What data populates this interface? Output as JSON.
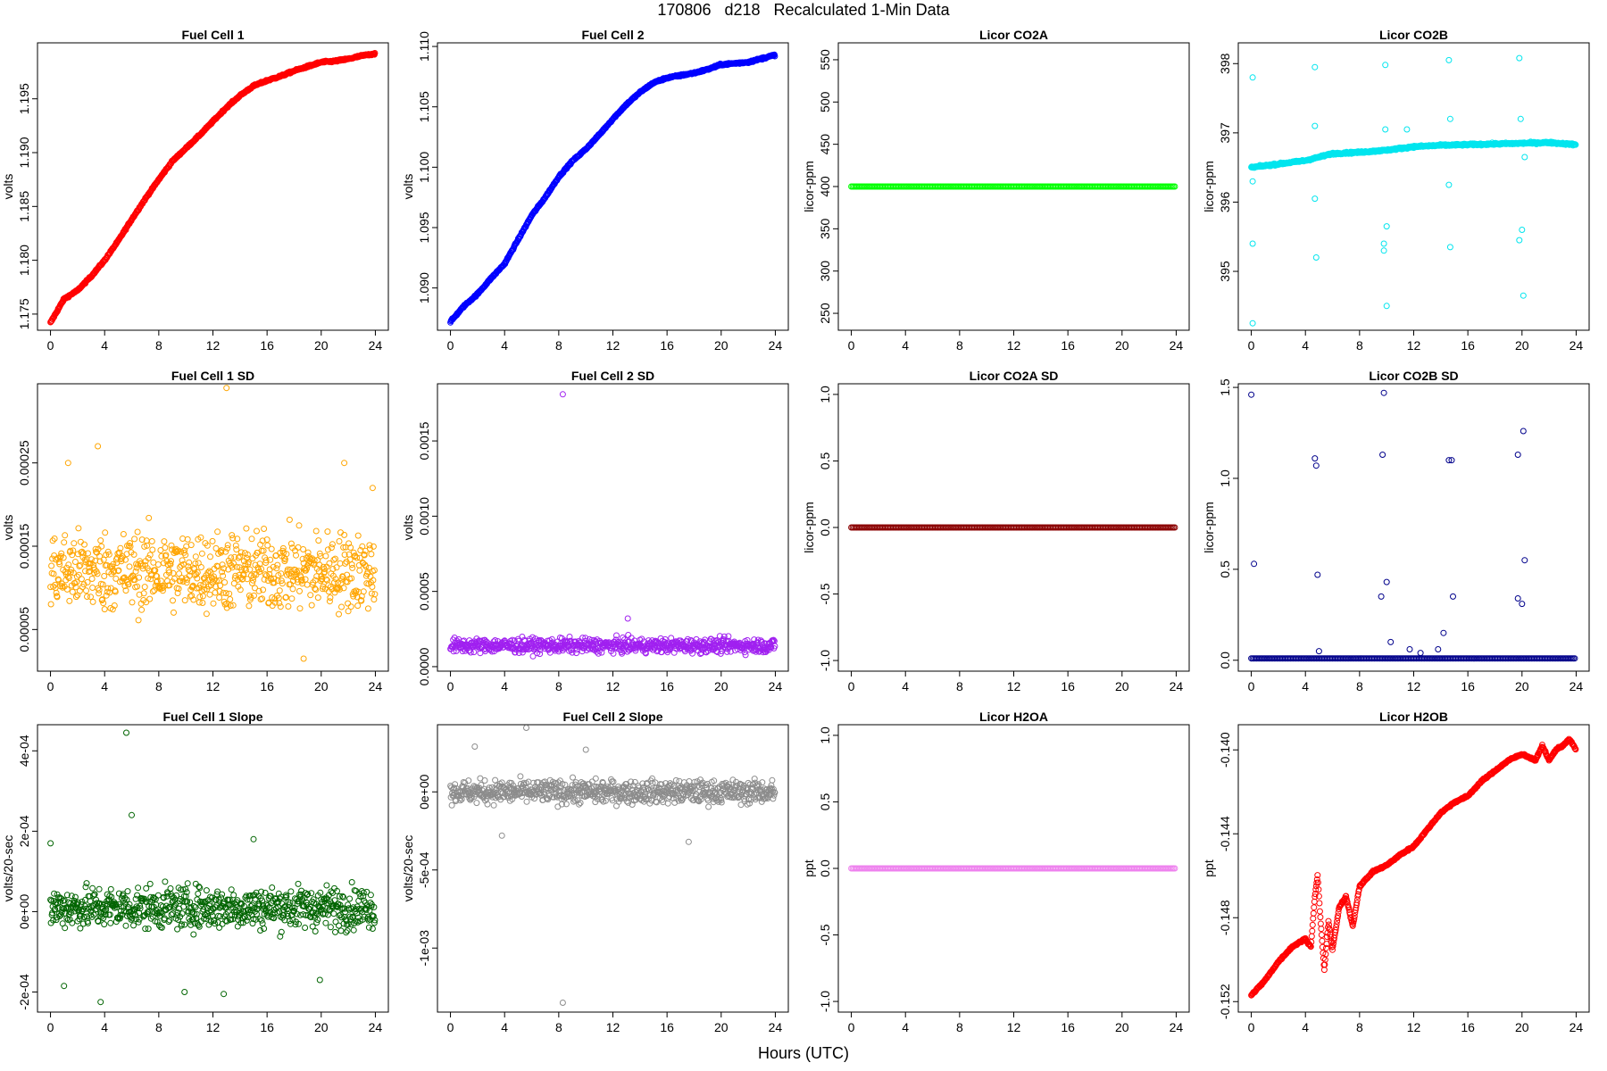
{
  "figure": {
    "title": "170806   d218   Recalculated 1-Min Data",
    "xlabel": "Hours (UTC)"
  },
  "chart_data": [
    {
      "type": "scatter",
      "title": "Fuel Cell 1",
      "ylabel": "volts",
      "color": "#ff0000",
      "xlim": [
        -0.96,
        24.96
      ],
      "ylim": [
        1.1735,
        1.2002
      ],
      "xticks": [
        0,
        4,
        8,
        12,
        16,
        20,
        24
      ],
      "yticks": [
        1.175,
        1.18,
        1.185,
        1.19,
        1.195
      ],
      "ytick_labels": [
        "1.175",
        "1.180",
        "1.185",
        "1.190",
        "1.195"
      ],
      "pattern": "curve",
      "curve": [
        [
          0,
          1.1742
        ],
        [
          1,
          1.1764
        ],
        [
          2,
          1.1772
        ],
        [
          3,
          1.1785
        ],
        [
          4,
          1.18
        ],
        [
          5,
          1.1818
        ],
        [
          6,
          1.1838
        ],
        [
          7,
          1.1857
        ],
        [
          8,
          1.1875
        ],
        [
          9,
          1.1892
        ],
        [
          10,
          1.1904
        ],
        [
          11,
          1.1916
        ],
        [
          12,
          1.1929
        ],
        [
          13,
          1.1942
        ],
        [
          14,
          1.1953
        ],
        [
          15,
          1.1962
        ],
        [
          16,
          1.1967
        ],
        [
          17,
          1.1971
        ],
        [
          18,
          1.1976
        ],
        [
          19,
          1.198
        ],
        [
          20,
          1.1984
        ],
        [
          21,
          1.1985
        ],
        [
          22,
          1.1987
        ],
        [
          23,
          1.199
        ],
        [
          24,
          1.1992
        ]
      ]
    },
    {
      "type": "scatter",
      "title": "Fuel Cell 2",
      "ylabel": "volts",
      "color": "#0000ff",
      "xlim": [
        -0.96,
        24.96
      ],
      "ylim": [
        1.0865,
        1.1103
      ],
      "xticks": [
        0,
        4,
        8,
        12,
        16,
        20,
        24
      ],
      "yticks": [
        1.09,
        1.095,
        1.1,
        1.105,
        1.11
      ],
      "ytick_labels": [
        "1.090",
        "1.095",
        "1.100",
        "1.105",
        "1.110"
      ],
      "pattern": "curve",
      "curve": [
        [
          0,
          1.0872
        ],
        [
          1,
          1.0885
        ],
        [
          2,
          1.0895
        ],
        [
          3,
          1.0908
        ],
        [
          4,
          1.092
        ],
        [
          5,
          1.094
        ],
        [
          6,
          1.096
        ],
        [
          7,
          1.0975
        ],
        [
          8,
          1.0992
        ],
        [
          9,
          1.1005
        ],
        [
          10,
          1.1015
        ],
        [
          11,
          1.1027
        ],
        [
          12,
          1.104
        ],
        [
          13,
          1.1052
        ],
        [
          14,
          1.1062
        ],
        [
          15,
          1.107
        ],
        [
          16,
          1.1074
        ],
        [
          17,
          1.1076
        ],
        [
          18,
          1.1078
        ],
        [
          19,
          1.1081
        ],
        [
          20,
          1.1085
        ],
        [
          21,
          1.1086
        ],
        [
          22,
          1.1087
        ],
        [
          23,
          1.109
        ],
        [
          24,
          1.1093
        ]
      ]
    },
    {
      "type": "scatter",
      "title": "Licor CO2A",
      "ylabel": "licor-ppm",
      "color": "#00ff00",
      "xlim": [
        -0.96,
        24.96
      ],
      "ylim": [
        230,
        570
      ],
      "xticks": [
        0,
        4,
        8,
        12,
        16,
        20,
        24
      ],
      "yticks": [
        250,
        300,
        350,
        400,
        450,
        500,
        550
      ],
      "ytick_labels": [
        "250",
        "300",
        "350",
        "400",
        "450",
        "500",
        "550"
      ],
      "pattern": "constant",
      "value": 400
    },
    {
      "type": "scatter",
      "title": "Licor CO2B",
      "ylabel": "licor-ppm",
      "color": "#00e5ee",
      "xlim": [
        -0.96,
        24.96
      ],
      "ylim": [
        394.15,
        398.3
      ],
      "xticks": [
        0,
        4,
        8,
        12,
        16,
        20,
        24
      ],
      "yticks": [
        395,
        396,
        397,
        398
      ],
      "ytick_labels": [
        "395",
        "396",
        "397",
        "398"
      ],
      "pattern": "curve",
      "curve": [
        [
          0,
          396.5
        ],
        [
          2,
          396.55
        ],
        [
          4,
          396.6
        ],
        [
          5,
          396.65
        ],
        [
          6,
          396.7
        ],
        [
          8,
          396.72
        ],
        [
          10,
          396.75
        ],
        [
          12,
          396.8
        ],
        [
          14,
          396.82
        ],
        [
          16,
          396.83
        ],
        [
          18,
          396.84
        ],
        [
          20,
          396.85
        ],
        [
          22,
          396.86
        ],
        [
          24,
          396.83
        ]
      ],
      "outliers": [
        [
          0.1,
          397.8
        ],
        [
          0.1,
          395.4
        ],
        [
          0.1,
          394.25
        ],
        [
          0.1,
          396.3
        ],
        [
          4.7,
          397.95
        ],
        [
          4.7,
          397.1
        ],
        [
          4.8,
          395.2
        ],
        [
          4.7,
          396.05
        ],
        [
          9.9,
          397.98
        ],
        [
          9.8,
          395.4
        ],
        [
          9.8,
          395.3
        ],
        [
          10.0,
          395.65
        ],
        [
          10.0,
          394.5
        ],
        [
          9.9,
          397.05
        ],
        [
          11.5,
          397.05
        ],
        [
          14.6,
          398.05
        ],
        [
          14.7,
          397.2
        ],
        [
          14.7,
          395.35
        ],
        [
          14.6,
          396.25
        ],
        [
          19.8,
          398.08
        ],
        [
          19.8,
          395.45
        ],
        [
          20.0,
          395.6
        ],
        [
          20.1,
          394.65
        ],
        [
          19.9,
          397.2
        ],
        [
          20.2,
          396.65
        ]
      ]
    },
    {
      "type": "scatter",
      "title": "Fuel Cell 1 SD",
      "ylabel": "volts",
      "color": "#ffa500",
      "xlim": [
        -0.96,
        24.96
      ],
      "ylim": [
        0.0,
        0.000345
      ],
      "xticks": [
        0,
        4,
        8,
        12,
        16,
        20,
        24
      ],
      "yticks": [
        5e-05,
        0.00015,
        0.00025
      ],
      "ytick_labels": [
        "0.00005",
        "0.00015",
        "0.00025"
      ],
      "pattern": "noise",
      "mean": 0.00012,
      "spread": 4.5e-05,
      "outliers": [
        [
          13.0,
          0.00034
        ],
        [
          3.5,
          0.00027
        ],
        [
          1.3,
          0.00025
        ],
        [
          21.7,
          0.00025
        ],
        [
          23.8,
          0.00022
        ],
        [
          18.7,
          1.5e-05
        ]
      ]
    },
    {
      "type": "scatter",
      "title": "Fuel Cell 2 SD",
      "ylabel": "volts",
      "color": "#a020f0",
      "xlim": [
        -0.96,
        24.96
      ],
      "ylim": [
        -3e-05,
        0.00188
      ],
      "xticks": [
        0,
        4,
        8,
        12,
        16,
        20,
        24
      ],
      "yticks": [
        0,
        0.0005,
        0.001,
        0.0015
      ],
      "ytick_labels": [
        "0.0000",
        "0.0005",
        "0.0010",
        "0.0015"
      ],
      "pattern": "noise",
      "mean": 0.00014,
      "spread": 4.5e-05,
      "outliers": [
        [
          8.3,
          0.00181
        ],
        [
          13.1,
          0.00032
        ]
      ]
    },
    {
      "type": "scatter",
      "title": "Licor CO2A SD",
      "ylabel": "licor-ppm",
      "color": "#8b0000",
      "xlim": [
        -0.96,
        24.96
      ],
      "ylim": [
        -1.08,
        1.08
      ],
      "xticks": [
        0,
        4,
        8,
        12,
        16,
        20,
        24
      ],
      "yticks": [
        -1,
        -0.5,
        0,
        0.5,
        1
      ],
      "ytick_labels": [
        "-1.0",
        "-0.5",
        "0.0",
        "0.5",
        "1.0"
      ],
      "pattern": "constant",
      "value": 0
    },
    {
      "type": "scatter",
      "title": "Licor CO2B SD",
      "ylabel": "licor-ppm",
      "color": "#00008b",
      "xlim": [
        -0.96,
        24.96
      ],
      "ylim": [
        -0.06,
        1.52
      ],
      "xticks": [
        0,
        4,
        8,
        12,
        16,
        20,
        24
      ],
      "yticks": [
        0,
        0.5,
        1,
        1.5
      ],
      "ytick_labels": [
        "0.0",
        "0.5",
        "1.0",
        "1.5"
      ],
      "pattern": "constant",
      "value": 0.01,
      "outliers": [
        [
          0.0,
          1.46
        ],
        [
          0.2,
          0.53
        ],
        [
          4.7,
          1.11
        ],
        [
          4.8,
          1.07
        ],
        [
          4.9,
          0.47
        ],
        [
          9.8,
          1.47
        ],
        [
          9.7,
          1.13
        ],
        [
          9.6,
          0.35
        ],
        [
          10.0,
          0.43
        ],
        [
          10.3,
          0.1
        ],
        [
          11.7,
          0.06
        ],
        [
          14.6,
          1.1
        ],
        [
          14.8,
          1.1
        ],
        [
          14.9,
          0.35
        ],
        [
          14.2,
          0.15
        ],
        [
          19.7,
          1.13
        ],
        [
          19.7,
          0.34
        ],
        [
          20.0,
          0.31
        ],
        [
          20.1,
          1.26
        ],
        [
          20.2,
          0.55
        ],
        [
          5.0,
          0.05
        ],
        [
          12.5,
          0.04
        ],
        [
          13.8,
          0.06
        ]
      ]
    },
    {
      "type": "scatter",
      "title": "Fuel Cell 1 Slope",
      "ylabel": "volts/20-sec",
      "color": "#006400",
      "xlim": [
        -0.96,
        24.96
      ],
      "ylim": [
        -0.00025,
        0.000465
      ],
      "xticks": [
        0,
        4,
        8,
        12,
        16,
        20,
        24
      ],
      "yticks": [
        -0.0002,
        0,
        0.0002,
        0.0004
      ],
      "ytick_labels": [
        "-2e-04",
        "0e+00",
        "2e-04",
        "4e-04"
      ],
      "pattern": "noise",
      "mean": 1e-05,
      "spread": 5e-05,
      "outliers": [
        [
          5.6,
          0.000445
        ],
        [
          6.0,
          0.00024
        ],
        [
          3.7,
          -0.000225
        ],
        [
          1.0,
          -0.000185
        ],
        [
          9.9,
          -0.0002
        ],
        [
          12.8,
          -0.000205
        ],
        [
          19.9,
          -0.00017
        ],
        [
          0.0,
          0.00017
        ],
        [
          15.0,
          0.00018
        ]
      ]
    },
    {
      "type": "scatter",
      "title": "Fuel Cell 2 Slope",
      "ylabel": "volts/20-sec",
      "color": "#8c8c8c",
      "xlim": [
        -0.96,
        24.96
      ],
      "ylim": [
        -0.00141,
        0.00043
      ],
      "xticks": [
        0,
        4,
        8,
        12,
        16,
        20,
        24
      ],
      "yticks": [
        -0.001,
        -0.0005,
        0
      ],
      "ytick_labels": [
        "-1e-03",
        "-5e-04",
        "0e+00"
      ],
      "pattern": "noise",
      "mean": 0.0,
      "spread": 7e-05,
      "outliers": [
        [
          5.6,
          0.00041
        ],
        [
          8.3,
          -0.00135
        ],
        [
          17.6,
          -0.00032
        ],
        [
          1.8,
          0.00029
        ],
        [
          10.0,
          0.00027
        ],
        [
          3.8,
          -0.00028
        ]
      ]
    },
    {
      "type": "scatter",
      "title": "Licor H2OA",
      "ylabel": "ppt",
      "color": "#ee82ee",
      "xlim": [
        -0.96,
        24.96
      ],
      "ylim": [
        -1.08,
        1.08
      ],
      "xticks": [
        0,
        4,
        8,
        12,
        16,
        20,
        24
      ],
      "yticks": [
        -1,
        -0.5,
        0,
        0.5,
        1
      ],
      "ytick_labels": [
        "-1.0",
        "-0.5",
        "0.0",
        "0.5",
        "1.0"
      ],
      "pattern": "constant",
      "value": 0
    },
    {
      "type": "scatter",
      "title": "Licor H2OB",
      "ylabel": "ppt",
      "color": "#ff0000",
      "xlim": [
        -0.96,
        24.96
      ],
      "ylim": [
        -0.1525,
        -0.1388
      ],
      "xticks": [
        0,
        4,
        8,
        12,
        16,
        20,
        24
      ],
      "yticks": [
        -0.152,
        -0.148,
        -0.144,
        -0.14
      ],
      "ytick_labels": [
        "-0.152",
        "-0.148",
        "-0.144",
        "-0.140"
      ],
      "pattern": "curve",
      "curve": [
        [
          0,
          -0.1517
        ],
        [
          1,
          -0.151
        ],
        [
          2,
          -0.1501
        ],
        [
          3,
          -0.1494
        ],
        [
          4,
          -0.149
        ],
        [
          4.4,
          -0.1494
        ],
        [
          4.7,
          -0.147
        ],
        [
          4.9,
          -0.146
        ],
        [
          5.1,
          -0.148
        ],
        [
          5.4,
          -0.1505
        ],
        [
          5.7,
          -0.1482
        ],
        [
          6.0,
          -0.1495
        ],
        [
          6.5,
          -0.1475
        ],
        [
          7.0,
          -0.147
        ],
        [
          7.5,
          -0.1484
        ],
        [
          8,
          -0.1465
        ],
        [
          9,
          -0.1458
        ],
        [
          10,
          -0.1455
        ],
        [
          11,
          -0.145
        ],
        [
          12,
          -0.1446
        ],
        [
          13,
          -0.1438
        ],
        [
          14,
          -0.143
        ],
        [
          15,
          -0.1425
        ],
        [
          16,
          -0.1422
        ],
        [
          17,
          -0.1415
        ],
        [
          18,
          -0.141
        ],
        [
          19,
          -0.1405
        ],
        [
          20,
          -0.1402
        ],
        [
          21,
          -0.1405
        ],
        [
          21.5,
          -0.1398
        ],
        [
          22,
          -0.1405
        ],
        [
          22.5,
          -0.14
        ],
        [
          23,
          -0.1398
        ],
        [
          23.5,
          -0.1395
        ],
        [
          24,
          -0.14
        ]
      ]
    }
  ]
}
